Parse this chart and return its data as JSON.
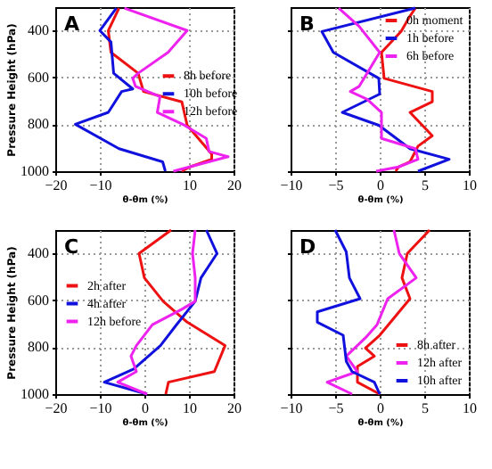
{
  "chart_data": [
    {
      "type": "line",
      "annotations": [
        "A"
      ],
      "ylabel": "Pressure Height (hPa)",
      "xlabel": "θ-θm (%)",
      "xlim": [
        -20,
        20
      ],
      "xticks": [
        -20,
        -10,
        10,
        20
      ],
      "ylim": [
        1000,
        300
      ],
      "yticks": [
        400,
        600,
        800,
        1000
      ],
      "grid": true,
      "legend": "right",
      "series": [
        {
          "name": "8h before",
          "color": "#ee1111",
          "x": [
            -5.7,
            -8.1,
            -7.5,
            -1.4,
            -0.2,
            8.4,
            9.6,
            15.1,
            15.1,
            10.2,
            8.4
          ],
          "values": [
            304,
            400,
            493,
            582,
            660,
            704,
            804,
            927,
            949,
            982,
            1000
          ]
        },
        {
          "name": "10h before",
          "color": "#1111dd",
          "x": [
            -6.3,
            -10,
            -7.5,
            -6.9,
            -2.6,
            -5.1,
            -8.1,
            -15.5,
            -5.7,
            4.1,
            4.7
          ],
          "values": [
            304,
            400,
            449,
            582,
            649,
            660,
            749,
            800,
            904,
            960,
            1000
          ]
        },
        {
          "name": "12h before",
          "color": "#ee22ee",
          "x": [
            -4.5,
            9.6,
            5.3,
            -1.4,
            -2.6,
            -2.0,
            3.5,
            2.9,
            9.0,
            13.9,
            14.5,
            18.8,
            6.5
          ],
          "values": [
            304,
            400,
            493,
            582,
            604,
            638,
            682,
            749,
            804,
            860,
            916,
            938,
            1000
          ]
        }
      ]
    },
    {
      "type": "line",
      "annotations": [
        "B"
      ],
      "xlabel": "θ-θm (%)",
      "xlim": [
        -10,
        10
      ],
      "xticks": [
        -10,
        -5,
        0,
        5,
        10
      ],
      "ylim": [
        1000,
        300
      ],
      "yticks": [
        400,
        600,
        800,
        1000
      ],
      "grid": true,
      "legend": "top right",
      "tick_labels": "x",
      "series": [
        {
          "name": "0h moment",
          "color": "#ee1111",
          "x": [
            4.0,
            3.4,
            2.4,
            0.2,
            0.5,
            5.9,
            5.9,
            3.4,
            5.9,
            4.3,
            3.4,
            2.1,
            1.8
          ],
          "values": [
            304,
            338,
            404,
            493,
            604,
            660,
            704,
            749,
            849,
            893,
            960,
            982,
            1000
          ]
        },
        {
          "name": "1h before",
          "color": "#1111dd",
          "x": [
            4.0,
            -6.5,
            -5.2,
            -0.1,
            0,
            -4.2,
            -0.1,
            3.4,
            7.8,
            4.3
          ],
          "values": [
            304,
            404,
            493,
            604,
            671,
            749,
            804,
            904,
            949,
            1000
          ]
        },
        {
          "name": "6h before",
          "color": "#ee22ee",
          "x": [
            -4.6,
            -2.3,
            0,
            -2.3,
            -3.3,
            -1.4,
            0.2,
            0.2,
            4.0,
            4.3,
            2.1,
            -0.4
          ],
          "values": [
            304,
            382,
            493,
            638,
            660,
            693,
            749,
            860,
            904,
            949,
            982,
            1000
          ]
        }
      ]
    },
    {
      "type": "line",
      "annotations": [
        "C"
      ],
      "ylabel": "Pressure Height (hPa)",
      "xlabel": "θ-θm (%)",
      "xlim": [
        -20,
        20
      ],
      "xticks": [
        -20,
        -10,
        0,
        10,
        20
      ],
      "ylim": [
        1000,
        300
      ],
      "yticks": [
        400,
        600,
        800,
        1000
      ],
      "grid": true,
      "legend": "left",
      "series": [
        {
          "name": "2h after",
          "color": "#ee1111",
          "x": [
            6.0,
            -1.2,
            0,
            4.2,
            9.6,
            18.1,
            15.7,
            5.4,
            4.8
          ],
          "values": [
            300,
            400,
            504,
            604,
            693,
            793,
            904,
            949,
            1000
          ]
        },
        {
          "name": "4h after",
          "color": "#1111dd",
          "x": [
            13.9,
            16.3,
            12.7,
            11.4,
            7.2,
            3.6,
            -2.4,
            -9.0,
            0.6
          ],
          "values": [
            300,
            400,
            504,
            604,
            704,
            793,
            893,
            949,
            1000
          ]
        },
        {
          "name": "12h before",
          "color": "#ee22ee",
          "x": [
            11.4,
            10.8,
            11.4,
            11.4,
            8.4,
            1.8,
            -1.8,
            -3.0,
            -1.8,
            -6.0,
            0.6
          ],
          "values": [
            300,
            400,
            504,
            604,
            638,
            704,
            793,
            838,
            904,
            949,
            1000
          ]
        }
      ]
    },
    {
      "type": "line",
      "annotations": [
        "D"
      ],
      "xlabel": "θ-θm (%)",
      "xlim": [
        -10,
        10
      ],
      "xticks": [
        -10,
        -5,
        0,
        5,
        10
      ],
      "ylim": [
        1000,
        300
      ],
      "yticks": [
        400,
        600,
        800,
        1000
      ],
      "grid": true,
      "legend": "bottom right",
      "tick_labels": "x",
      "series": [
        {
          "name": "8h after",
          "color": "#ee1111",
          "x": [
            5.6,
            3.1,
            2.5,
            3.4,
            0,
            -1.6,
            -0.6,
            -2.5,
            -2.5,
            0
          ],
          "values": [
            300,
            400,
            504,
            593,
            749,
            804,
            838,
            882,
            949,
            1000
          ]
        },
        {
          "name": "12h after",
          "color": "#ee22ee",
          "x": [
            1.6,
            2.2,
            4.1,
            0.9,
            -0.3,
            -1.6,
            -3.75,
            -2.5,
            -5.9,
            -3.1
          ],
          "values": [
            300,
            400,
            504,
            593,
            704,
            760,
            838,
            904,
            949,
            1000
          ]
        },
        {
          "name": "10h after",
          "color": "#1111dd",
          "x": [
            -5,
            -3.75,
            -3.4,
            -2.2,
            -7,
            -7,
            -4.1,
            -3.75,
            -3.1,
            -0.6,
            0
          ],
          "values": [
            300,
            393,
            504,
            593,
            649,
            693,
            749,
            860,
            904,
            949,
            1000
          ]
        }
      ]
    }
  ]
}
